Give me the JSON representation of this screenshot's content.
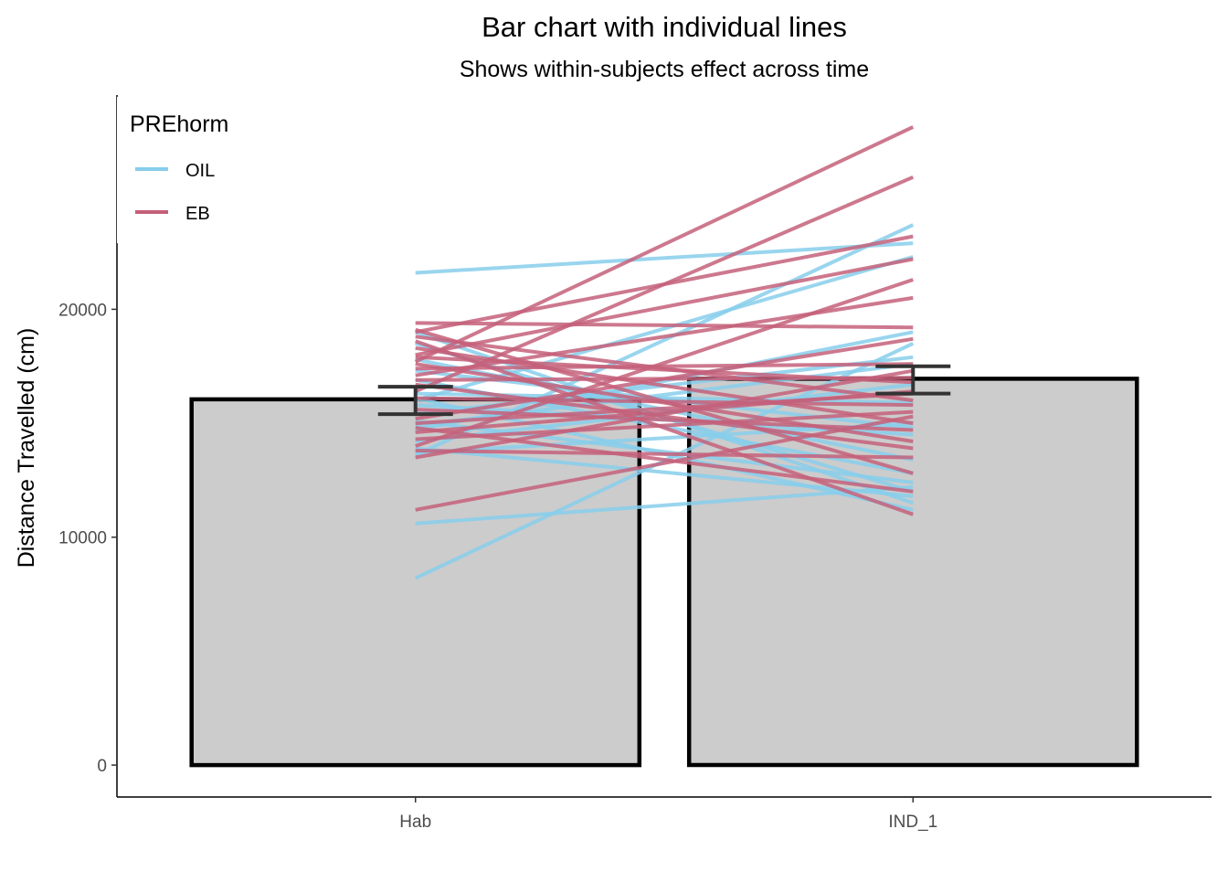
{
  "chart_data": {
    "type": "bar",
    "title": "Bar chart with individual lines",
    "subtitle": "Shows within-subjects effect across time",
    "xlabel": "",
    "ylabel": "Distance Travelled (cm)",
    "categories": [
      "Hab",
      "IND_1"
    ],
    "ylim": [
      -1400,
      29400
    ],
    "y_ticks": [
      0,
      10000,
      20000
    ],
    "y_tick_labels": [
      "0",
      "10000",
      "20000"
    ],
    "grid": false,
    "legend": {
      "title": "PREhorm",
      "position": "top-left",
      "entries": [
        {
          "label": "OIL",
          "color": "#87ceeb"
        },
        {
          "label": "EB",
          "color": "#c4607a"
        }
      ]
    },
    "bars": {
      "values": [
        16050,
        16950
      ],
      "error_low": [
        15400,
        16300
      ],
      "error_high": [
        16600,
        17500
      ],
      "fill": "#cccccc",
      "stroke": "#000000"
    },
    "series": [
      {
        "name": "OIL",
        "color": "#87ceeb",
        "lines": [
          [
            21600,
            22900
          ],
          [
            8200,
            18500
          ],
          [
            10600,
            12200
          ],
          [
            13600,
            23700
          ],
          [
            16000,
            22300
          ],
          [
            19000,
            11500
          ],
          [
            18500,
            12000
          ],
          [
            17800,
            13400
          ],
          [
            16300,
            15900
          ],
          [
            15800,
            14500
          ],
          [
            15400,
            17900
          ],
          [
            14700,
            19000
          ],
          [
            14200,
            16700
          ],
          [
            13900,
            11800
          ],
          [
            17300,
            14800
          ],
          [
            16900,
            12800
          ],
          [
            14900,
            17600
          ],
          [
            16100,
            11200
          ],
          [
            13700,
            15000
          ],
          [
            15100,
            12400
          ]
        ]
      },
      {
        "name": "EB",
        "color": "#c4607a",
        "lines": [
          [
            17700,
            28000
          ],
          [
            16400,
            25800
          ],
          [
            19000,
            23200
          ],
          [
            18000,
            22200
          ],
          [
            14000,
            21300
          ],
          [
            17100,
            20500
          ],
          [
            19400,
            19200
          ],
          [
            15200,
            18700
          ],
          [
            17400,
            17600
          ],
          [
            13500,
            17300
          ],
          [
            17900,
            16800
          ],
          [
            14600,
            16400
          ],
          [
            18800,
            16000
          ],
          [
            16100,
            15800
          ],
          [
            14300,
            15500
          ],
          [
            11200,
            15300
          ],
          [
            18300,
            15000
          ],
          [
            15600,
            14700
          ],
          [
            17600,
            14200
          ],
          [
            16700,
            13900
          ],
          [
            13800,
            13500
          ],
          [
            19100,
            12800
          ],
          [
            14800,
            12000
          ],
          [
            18600,
            11000
          ],
          [
            15000,
            16300
          ],
          [
            16900,
            17000
          ]
        ]
      }
    ]
  }
}
